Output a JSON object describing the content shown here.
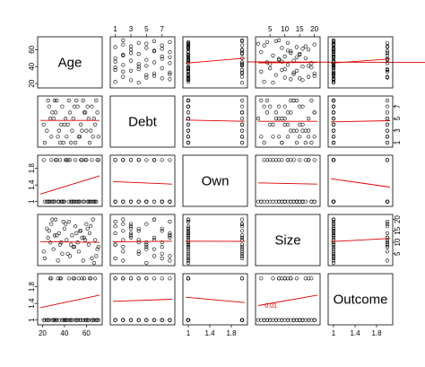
{
  "chart_data": {
    "type": "scatter",
    "variables": [
      {
        "name": "Age",
        "range": [
          18,
          72
        ],
        "ticks": [
          20,
          40,
          60
        ]
      },
      {
        "name": "Debt",
        "range": [
          0.7,
          8.3
        ],
        "ticks": [
          1,
          3,
          5,
          7
        ]
      },
      {
        "name": "Own",
        "range": [
          0.95,
          2.05
        ],
        "ticks": [
          1.0,
          1.4,
          1.8
        ]
      },
      {
        "name": "Size",
        "range": [
          1,
          21
        ],
        "ticks": [
          5,
          10,
          15,
          20
        ]
      },
      {
        "name": "Outcome",
        "range": [
          0.95,
          2.05
        ],
        "ticks": [
          1.0,
          1.4,
          1.8
        ]
      }
    ],
    "records": [
      [
        22,
        1,
        1,
        3,
        1
      ],
      [
        25,
        8,
        1,
        12,
        1
      ],
      [
        28,
        2,
        2,
        18,
        2
      ],
      [
        30,
        5,
        1,
        7,
        1
      ],
      [
        32,
        6,
        2,
        20,
        1
      ],
      [
        35,
        3,
        1,
        14,
        1
      ],
      [
        36,
        1,
        2,
        9,
        2
      ],
      [
        38,
        7,
        1,
        5,
        1
      ],
      [
        40,
        4,
        1,
        16,
        1
      ],
      [
        42,
        2,
        2,
        11,
        1
      ],
      [
        44,
        8,
        1,
        19,
        2
      ],
      [
        45,
        6,
        2,
        4,
        1
      ],
      [
        47,
        3,
        1,
        13,
        1
      ],
      [
        48,
        5,
        1,
        8,
        2
      ],
      [
        50,
        1,
        2,
        17,
        1
      ],
      [
        52,
        7,
        1,
        10,
        1
      ],
      [
        53,
        2,
        1,
        6,
        2
      ],
      [
        55,
        4,
        2,
        15,
        1
      ],
      [
        57,
        8,
        1,
        2,
        1
      ],
      [
        58,
        6,
        1,
        12,
        2
      ],
      [
        60,
        3,
        2,
        18,
        1
      ],
      [
        62,
        5,
        1,
        9,
        1
      ],
      [
        63,
        1,
        1,
        14,
        2
      ],
      [
        65,
        7,
        2,
        3,
        1
      ],
      [
        66,
        2,
        1,
        20,
        1
      ],
      [
        68,
        4,
        1,
        11,
        2
      ],
      [
        70,
        6,
        2,
        7,
        1
      ],
      [
        24,
        3,
        1,
        16,
        1
      ],
      [
        27,
        5,
        1,
        10,
        2
      ],
      [
        33,
        8,
        2,
        13,
        1
      ],
      [
        39,
        1,
        1,
        19,
        1
      ],
      [
        43,
        4,
        2,
        5,
        1
      ],
      [
        49,
        7,
        1,
        8,
        2
      ],
      [
        54,
        2,
        1,
        15,
        1
      ],
      [
        59,
        6,
        2,
        11,
        1
      ],
      [
        64,
        3,
        1,
        17,
        2
      ],
      [
        69,
        8,
        1,
        4,
        1
      ],
      [
        21,
        4,
        2,
        6,
        1
      ],
      [
        29,
        6,
        1,
        20,
        1
      ],
      [
        34,
        2,
        1,
        2,
        2
      ],
      [
        41,
        5,
        2,
        18,
        1
      ],
      [
        46,
        1,
        1,
        9,
        1
      ],
      [
        51,
        8,
        1,
        14,
        1
      ],
      [
        56,
        3,
        2,
        12,
        2
      ],
      [
        61,
        7,
        1,
        16,
        1
      ],
      [
        67,
        5,
        1,
        1,
        1
      ],
      [
        31,
        8,
        1,
        13,
        1
      ],
      [
        37,
        4,
        1,
        10,
        2
      ],
      [
        71,
        2,
        2,
        8,
        1
      ],
      [
        26,
        7,
        1,
        15,
        1
      ]
    ],
    "fit_lines": {
      "0,1": [
        [
          18,
          45.5
        ],
        [
          72,
          44.2
        ]
      ],
      "0,2": [
        [
          0.95,
          44.0
        ],
        [
          2.05,
          50.0
        ]
      ],
      "0,3": [
        [
          1,
          44.5
        ],
        [
          21,
          45.0
        ]
      ],
      "0,4": [
        [
          0.95,
          44.0
        ],
        [
          2.05,
          49.0
        ]
      ],
      "1,0": [
        [
          18,
          4.7
        ],
        [
          72,
          4.7
        ]
      ],
      "1,2": [
        [
          0.95,
          4.75
        ],
        [
          2.05,
          4.55
        ]
      ],
      "1,3": [
        [
          1,
          4.55
        ],
        [
          21,
          4.55
        ]
      ],
      "1,4": [
        [
          0.95,
          4.45
        ],
        [
          2.05,
          4.65
        ]
      ],
      "2,0": [
        [
          18,
          1.18
        ],
        [
          72,
          1.62
        ]
      ],
      "2,1": [
        [
          0.7,
          1.48
        ],
        [
          8.3,
          1.42
        ]
      ],
      "2,3": [
        [
          1,
          1.45
        ],
        [
          21,
          1.42
        ]
      ],
      "2,4": [
        [
          0.95,
          1.55
        ],
        [
          2.05,
          1.35
        ]
      ],
      "3,0": [
        [
          18,
          10.3
        ],
        [
          72,
          10.0
        ]
      ],
      "3,1": [
        [
          0.7,
          10.2
        ],
        [
          8.3,
          10.5
        ]
      ],
      "3,2": [
        [
          0.95,
          10.5
        ],
        [
          2.05,
          10.4
        ]
      ],
      "3,4": [
        [
          0.95,
          10.3
        ],
        [
          2.05,
          11.7
        ]
      ],
      "4,0": [
        [
          18,
          1.3
        ],
        [
          72,
          1.6
        ]
      ],
      "4,1": [
        [
          0.7,
          1.45
        ],
        [
          8.3,
          1.5
        ]
      ],
      "4,2": [
        [
          0.95,
          1.55
        ],
        [
          2.05,
          1.42
        ]
      ],
      "4,3": [
        [
          1,
          1.35
        ],
        [
          21,
          1.6
        ]
      ]
    },
    "annotations": [
      {
        "row": 4,
        "col": 3,
        "x": 3.2,
        "y": 1.3,
        "text": "0.01"
      }
    ],
    "colors": {
      "points": "#000000",
      "fit": "#e00000"
    }
  }
}
